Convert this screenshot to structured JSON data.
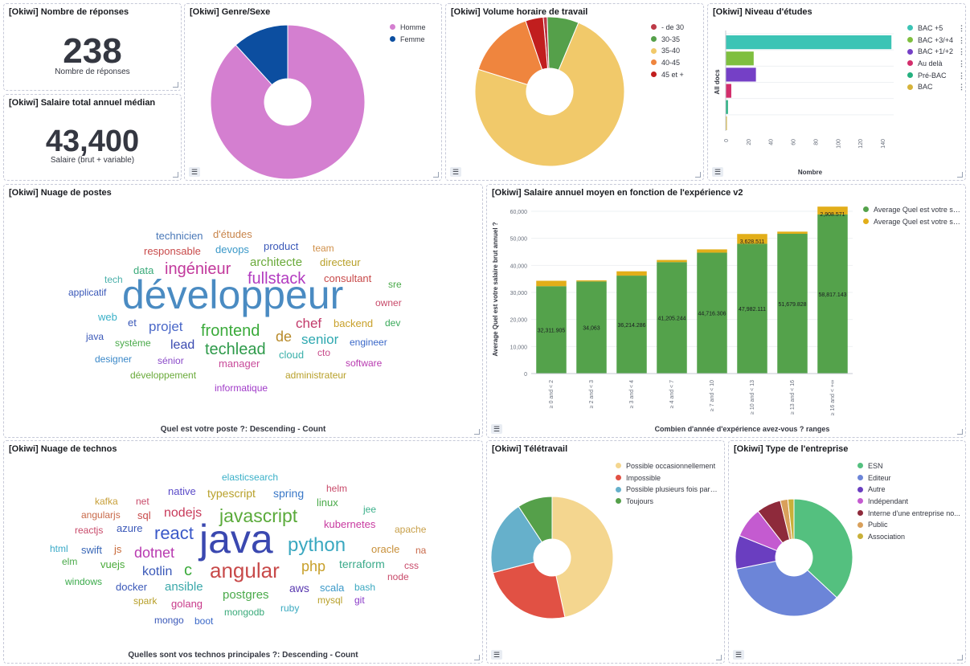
{
  "panels": {
    "responses": {
      "title": "[Okiwi] Nombre de réponses",
      "value": "238",
      "label": "Nombre de réponses"
    },
    "salary": {
      "title": "[Okiwi] Salaire total annuel médian",
      "value": "43,400",
      "label": "Salaire (brut + variable)"
    },
    "gender": {
      "title": "[Okiwi] Genre/Sexe",
      "legend": [
        "Homme",
        "Femme"
      ]
    },
    "hours": {
      "title": "[Okiwi] Volume horaire de travail",
      "legend": [
        "- de 30",
        "30-35",
        "35-40",
        "40-45",
        "45 et +"
      ]
    },
    "education": {
      "title": "[Okiwi] Niveau d'études",
      "legend": [
        "BAC +5",
        "BAC +3/+4",
        "BAC +1/+2",
        "Au delà",
        "Pré-BAC",
        "BAC"
      ],
      "ylabel": "All docs",
      "xlabel": "Nombre",
      "xticks": [
        "0",
        "20",
        "40",
        "60",
        "80",
        "100",
        "120",
        "140"
      ]
    },
    "postes": {
      "title": "[Okiwi] Nuage de postes",
      "caption": "Quel est votre poste ?: Descending - Count"
    },
    "salary_exp": {
      "title": "[Okiwi] Salaire annuel moyen en fonction de l'expérience v2",
      "legend": [
        "Average Quel est votre salai...",
        "Average Quel est votre salai..."
      ],
      "ylabel": "Average Quel est votre salaire brut annuel ?",
      "xlabel": "Combien d'année d'expérience avez-vous ? ranges"
    },
    "technos": {
      "title": "[Okiwi] Nuage de technos",
      "caption": "Quelles sont vos technos principales ?: Descending - Count"
    },
    "teletravail": {
      "title": "[Okiwi] Télétravail",
      "legend": [
        "Possible occasionnellement",
        "Impossible",
        "Possible plusieurs fois par s...",
        "Toujours"
      ]
    },
    "entreprise": {
      "title": "[Okiwi] Type de l'entreprise",
      "legend": [
        "ESN",
        "Editeur",
        "Autre",
        "Indépendant",
        "Interne d'une entreprise no...",
        "Public",
        "Association"
      ]
    }
  },
  "icons": {
    "legend_toggle": "list-icon",
    "resize": "resize-handle-icon",
    "options": "dots-icon"
  },
  "chart_data": [
    {
      "type": "pie",
      "title": "[Okiwi] Genre/Sexe",
      "labels": [
        "Homme",
        "Femme"
      ],
      "values": [
        210,
        28
      ],
      "colors": [
        "#d47fd0",
        "#0c4ea0"
      ],
      "donut": true
    },
    {
      "type": "pie",
      "title": "[Okiwi] Volume horaire de travail",
      "labels": [
        "- de 30",
        "30-35",
        "35-40",
        "40-45",
        "45 et +"
      ],
      "values": [
        2,
        16,
        172,
        35,
        9
      ],
      "colors": [
        "#bd3a47",
        "#55a04a",
        "#f1c96a",
        "#ef853e",
        "#c11e1e"
      ],
      "start_order": [
        "- de 30",
        "30-35",
        "35-40",
        "40-45",
        "45 et +"
      ],
      "donut": true
    },
    {
      "type": "bar",
      "orientation": "horizontal",
      "title": "[Okiwi] Niveau d'études",
      "categories": [
        "BAC +5",
        "BAC +3/+4",
        "BAC +1/+2",
        "Au delà",
        "Pré-BAC",
        "BAC"
      ],
      "values": [
        148,
        25,
        27,
        5,
        2,
        1
      ],
      "colors": [
        "#3cc4b5",
        "#7fbf3f",
        "#7540c6",
        "#d32e6c",
        "#25b07f",
        "#d6b33a"
      ],
      "xlim": [
        0,
        150
      ],
      "xlabel": "Nombre",
      "ylabel": "All docs"
    },
    {
      "type": "bar",
      "stacked": true,
      "title": "[Okiwi] Salaire annuel moyen en fonction de l'expérience v2",
      "categories": [
        "≥ 0 and < 2",
        "≥ 2 and < 3",
        "≥ 3 and < 4",
        "≥ 4 and < 7",
        "≥ 7 and < 10",
        "≥ 10 and < 13",
        "≥ 13 and < 16",
        "≥ 16 and < +∞"
      ],
      "series": [
        {
          "name": "Average Quel est votre salai...",
          "values": [
            32311.905,
            34063,
            36214.286,
            41205.244,
            44716.306,
            47982.111,
            51679.828,
            58817.143
          ],
          "labels": [
            "32,311.905",
            "34,063",
            "36,214.286",
            "41,205.244",
            "44,716.306",
            "47,982.111",
            "51,679.828",
            "58,817.143"
          ],
          "color": "#54a24b"
        },
        {
          "name": "Average Quel est votre salai...",
          "values": [
            2000,
            400,
            1600,
            800,
            1200,
            3628.511,
            800,
            2908.571
          ],
          "labels": [
            "",
            "",
            "",
            "",
            "",
            "3,628.511",
            "",
            "2,908.571"
          ],
          "color": "#e2ae19"
        }
      ],
      "ylim": [
        0,
        60000
      ],
      "yticks": [
        "0",
        "10,000",
        "20,000",
        "30,000",
        "40,000",
        "50,000",
        "60,000"
      ],
      "xlabel": "Combien d'année d'expérience avez-vous ? ranges",
      "ylabel": "Average Quel est votre salaire brut annuel ?"
    },
    {
      "type": "pie",
      "title": "[Okiwi] Télétravail",
      "labels": [
        "Possible occasionnellement",
        "Impossible",
        "Possible plusieurs fois par s...",
        "Toujours"
      ],
      "values": [
        111,
        58,
        47,
        22
      ],
      "colors": [
        "#f4d68f",
        "#e15144",
        "#66b0cb",
        "#55a04a"
      ],
      "donut": true
    },
    {
      "type": "pie",
      "title": "[Okiwi] Type de l'entreprise",
      "labels": [
        "ESN",
        "Editeur",
        "Autre",
        "Indépendant",
        "Interne d'une entreprise no...",
        "Public",
        "Association"
      ],
      "values": [
        88,
        83,
        22,
        20,
        16,
        5,
        4
      ],
      "colors": [
        "#54c07f",
        "#6c85d8",
        "#6a3ec0",
        "#c45bd0",
        "#8e2a3b",
        "#d9a05b",
        "#c9b039"
      ],
      "donut": true
    }
  ],
  "clouds": {
    "postes": [
      {
        "text": "développeur",
        "size": 50,
        "color": "#4a8bc2"
      },
      {
        "text": "fullstack",
        "size": 20,
        "color": "#b23bc0"
      },
      {
        "text": "ingénieur",
        "size": 20,
        "color": "#c2399c"
      },
      {
        "text": "frontend",
        "size": 20,
        "color": "#3aaa3a"
      },
      {
        "text": "techlead",
        "size": 20,
        "color": "#2e9a4a"
      },
      {
        "text": "projet",
        "size": 17,
        "color": "#4a68c8"
      },
      {
        "text": "architecte",
        "size": 15,
        "color": "#6aaa3a"
      },
      {
        "text": "chef",
        "size": 17,
        "color": "#c23a6a"
      },
      {
        "text": "de",
        "size": 18,
        "color": "#b88a2a"
      },
      {
        "text": "senior",
        "size": 17,
        "color": "#2ea8b0"
      },
      {
        "text": "lead",
        "size": 16,
        "color": "#3a4ab0"
      },
      {
        "text": "technicien",
        "size": 13,
        "color": "#4a78b8"
      },
      {
        "text": "d'études",
        "size": 13,
        "color": "#c8844a"
      },
      {
        "text": "responsable",
        "size": 13,
        "color": "#c84a4a"
      },
      {
        "text": "devops",
        "size": 13,
        "color": "#3a98c8"
      },
      {
        "text": "product",
        "size": 13,
        "color": "#3a58b8"
      },
      {
        "text": "team",
        "size": 12,
        "color": "#d0904a"
      },
      {
        "text": "data",
        "size": 13,
        "color": "#3aaa7a"
      },
      {
        "text": "directeur",
        "size": 13,
        "color": "#b8a02a"
      },
      {
        "text": "consultant",
        "size": 13,
        "color": "#c84a4a"
      },
      {
        "text": "tech",
        "size": 12,
        "color": "#4ab0aa"
      },
      {
        "text": "applicatif",
        "size": 12,
        "color": "#3a58b8"
      },
      {
        "text": "sre",
        "size": 12,
        "color": "#4aaa4a"
      },
      {
        "text": "owner",
        "size": 12,
        "color": "#c84a6a"
      },
      {
        "text": "web",
        "size": 13,
        "color": "#3ab0c8"
      },
      {
        "text": "et",
        "size": 13,
        "color": "#3a58b8"
      },
      {
        "text": "backend",
        "size": 13,
        "color": "#c8a02a"
      },
      {
        "text": "dev",
        "size": 12,
        "color": "#3aaa5a"
      },
      {
        "text": "java",
        "size": 12,
        "color": "#3a58b8"
      },
      {
        "text": "système",
        "size": 12,
        "color": "#4aaa4a"
      },
      {
        "text": "cloud",
        "size": 13,
        "color": "#3ab0aa"
      },
      {
        "text": "cto",
        "size": 12,
        "color": "#c84a8a"
      },
      {
        "text": "engineer",
        "size": 12,
        "color": "#3a68c8"
      },
      {
        "text": "designer",
        "size": 12,
        "color": "#3a88c8"
      },
      {
        "text": "sénior",
        "size": 12,
        "color": "#8a4ac8"
      },
      {
        "text": "manager",
        "size": 13,
        "color": "#c84a9a"
      },
      {
        "text": "software",
        "size": 12,
        "color": "#b83ab0"
      },
      {
        "text": "développement",
        "size": 12,
        "color": "#6aaa3a"
      },
      {
        "text": "administrateur",
        "size": 12,
        "color": "#b8a02a"
      },
      {
        "text": "informatique",
        "size": 12,
        "color": "#a03ac8"
      }
    ],
    "technos": [
      {
        "text": "java",
        "size": 50,
        "color": "#3a48b0"
      },
      {
        "text": "javascript",
        "size": 23,
        "color": "#5aaa3a"
      },
      {
        "text": "python",
        "size": 24,
        "color": "#3aa8c0"
      },
      {
        "text": "angular",
        "size": 26,
        "color": "#c84a4a"
      },
      {
        "text": "react",
        "size": 22,
        "color": "#3a58c8"
      },
      {
        "text": "dotnet",
        "size": 18,
        "color": "#b83ab0"
      },
      {
        "text": "kotlin",
        "size": 16,
        "color": "#3a58b8"
      },
      {
        "text": "c",
        "size": 20,
        "color": "#3aaa3a"
      },
      {
        "text": "php",
        "size": 18,
        "color": "#c8a02a"
      },
      {
        "text": "ansible",
        "size": 15,
        "color": "#3aa8aa"
      },
      {
        "text": "postgres",
        "size": 15,
        "color": "#4aaa4a"
      },
      {
        "text": "nodejs",
        "size": 16,
        "color": "#c83a5a"
      },
      {
        "text": "elasticsearch",
        "size": 12,
        "color": "#3ab0c8"
      },
      {
        "text": "kafka",
        "size": 12,
        "color": "#c8a03a"
      },
      {
        "text": "net",
        "size": 12,
        "color": "#c84a6a"
      },
      {
        "text": "native",
        "size": 13,
        "color": "#5a4ac8"
      },
      {
        "text": "typescript",
        "size": 14,
        "color": "#b8a02a"
      },
      {
        "text": "spring",
        "size": 14,
        "color": "#3a78c8"
      },
      {
        "text": "helm",
        "size": 12,
        "color": "#c84a6a"
      },
      {
        "text": "angularjs",
        "size": 12,
        "color": "#c86a4a"
      },
      {
        "text": "sql",
        "size": 13,
        "color": "#c84a4a"
      },
      {
        "text": "linux",
        "size": 13,
        "color": "#4aaa4a"
      },
      {
        "text": "jee",
        "size": 12,
        "color": "#3ab08a"
      },
      {
        "text": "kubernetes",
        "size": 13,
        "color": "#c83aa0"
      },
      {
        "text": "reactjs",
        "size": 12,
        "color": "#c84a6a"
      },
      {
        "text": "azure",
        "size": 13,
        "color": "#3a58b8"
      },
      {
        "text": "apache",
        "size": 12,
        "color": "#c8a04a"
      },
      {
        "text": "html",
        "size": 12,
        "color": "#3aaac8"
      },
      {
        "text": "swift",
        "size": 13,
        "color": "#3a68b8"
      },
      {
        "text": "js",
        "size": 13,
        "color": "#c86a3a"
      },
      {
        "text": "terraform",
        "size": 14,
        "color": "#3aaa8a"
      },
      {
        "text": "oracle",
        "size": 13,
        "color": "#c8903a"
      },
      {
        "text": "na",
        "size": 12,
        "color": "#c86a4a"
      },
      {
        "text": "elm",
        "size": 12,
        "color": "#4aaa4a"
      },
      {
        "text": "vuejs",
        "size": 13,
        "color": "#4aaa3a"
      },
      {
        "text": "css",
        "size": 12,
        "color": "#c84a6a"
      },
      {
        "text": "node",
        "size": 12,
        "color": "#c84a6a"
      },
      {
        "text": "windows",
        "size": 12,
        "color": "#3aaa4a"
      },
      {
        "text": "docker",
        "size": 13,
        "color": "#3a58b8"
      },
      {
        "text": "aws",
        "size": 14,
        "color": "#5a3ab0"
      },
      {
        "text": "scala",
        "size": 13,
        "color": "#3a98c8"
      },
      {
        "text": "bash",
        "size": 12,
        "color": "#3aa8c0"
      },
      {
        "text": "spark",
        "size": 12,
        "color": "#b8a02a"
      },
      {
        "text": "golang",
        "size": 13,
        "color": "#c83a8a"
      },
      {
        "text": "mysql",
        "size": 12,
        "color": "#b8a02a"
      },
      {
        "text": "git",
        "size": 12,
        "color": "#8a3ac8"
      },
      {
        "text": "mongo",
        "size": 12,
        "color": "#3a58b8"
      },
      {
        "text": "boot",
        "size": 12,
        "color": "#3a68c8"
      },
      {
        "text": "mongodb",
        "size": 12,
        "color": "#3aaa7a"
      },
      {
        "text": "ruby",
        "size": 12,
        "color": "#3aaac0"
      }
    ]
  }
}
